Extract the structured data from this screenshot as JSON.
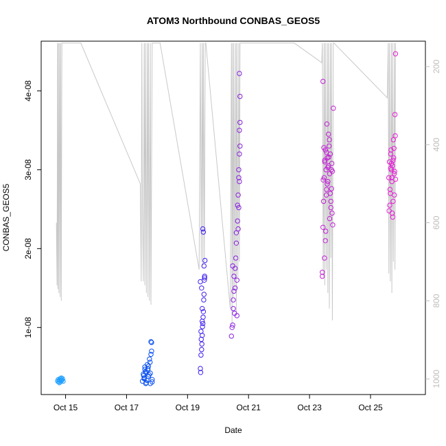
{
  "chart_data": {
    "type": "scatter",
    "title": "ATOM3 Northbound CONBAS_GEOS5",
    "xlabel": "Date",
    "ylabel": "CONBAS_GEOS5",
    "x_ticks": [
      "Oct 15",
      "Oct 17",
      "Oct 19",
      "Oct 21",
      "Oct 23",
      "Oct 25"
    ],
    "x_tick_days": [
      15,
      17,
      19,
      21,
      23,
      25
    ],
    "xlim": [
      14.2,
      26.8
    ],
    "ylim": [
      1.5e-09,
      4.63e-08
    ],
    "y_ticks": [
      "1e-08",
      "2e-08",
      "3e-08",
      "4e-08"
    ],
    "y_tick_values": [
      1e-08,
      2e-08,
      3e-08,
      4e-08
    ],
    "y2_ticks": [
      "200",
      "400",
      "600",
      "800",
      "1000"
    ],
    "y2_tick_values": [
      200,
      400,
      600,
      800,
      1000
    ],
    "y2lim": [
      1040,
      135
    ],
    "grid": false,
    "pressure_line_color": "#c8c8c8",
    "series": [
      {
        "color": "#1e9fff",
        "x": [
          14.74,
          14.76,
          14.78,
          14.8,
          14.82,
          14.84,
          14.86,
          14.88,
          14.9,
          14.92,
          14.8,
          14.86
        ],
        "y": [
          3.2e-09,
          3.4e-09,
          3.1e-09,
          3.3e-09,
          3.5e-09,
          3.2e-09,
          3.4e-09,
          3.3e-09,
          3.5e-09,
          3.2e-09,
          3e-09,
          3.6e-09
        ]
      },
      {
        "color": "#0a50f0",
        "x": [
          17.52,
          17.55,
          17.58,
          17.6,
          17.62,
          17.65,
          17.68,
          17.7,
          17.72,
          17.75,
          17.78,
          17.8,
          17.82,
          17.84,
          17.56,
          17.63,
          17.7,
          17.77,
          17.82,
          17.6,
          17.66,
          17.74,
          17.8,
          17.84,
          17.58,
          17.64,
          17.72,
          17.78
        ],
        "y": [
          3.2e-09,
          4.1e-09,
          3.6e-09,
          5e-09,
          4.4e-09,
          3e-09,
          5.3e-09,
          4.8e-09,
          3.8e-09,
          6e-09,
          4.2e-09,
          8.2e-09,
          7e-09,
          3.4e-09,
          3.9e-09,
          2.9e-09,
          4.6e-09,
          5.6e-09,
          8.1e-09,
          4.7e-09,
          3.3e-09,
          4e-09,
          6.6e-09,
          3.1e-09,
          3.5e-09,
          4.3e-09,
          5.1e-09,
          2.9e-09
        ]
      },
      {
        "color": "#3c1ef0",
        "x": [
          19.42,
          19.44,
          19.46,
          19.48,
          19.5,
          19.52,
          19.54,
          19.56,
          19.43,
          19.47,
          19.51,
          19.55,
          19.45,
          19.49,
          19.53,
          19.57,
          19.44,
          19.48,
          19.52,
          19.46,
          19.5,
          19.54,
          19.42,
          19.56,
          19.48
        ],
        "y": [
          4.8e-09,
          6.5e-09,
          7.2e-09,
          9e-09,
          1.05e-08,
          1.2e-08,
          1.42e-08,
          1.65e-08,
          4.3e-09,
          7.9e-09,
          1.13e-08,
          1.6e-08,
          8.5e-09,
          1.01e-08,
          1.35e-08,
          1.85e-08,
          9.5e-09,
          1.24e-08,
          2.21e-08,
          1.5e-08,
          2.25e-08,
          1.78e-08,
          1.58e-08,
          1.63e-08,
          1.08e-08
        ]
      },
      {
        "color": "#8a20e0",
        "x": [
          20.44,
          20.48,
          20.5,
          20.52,
          20.56,
          20.6,
          20.64,
          20.68,
          20.7,
          20.72,
          20.46,
          20.54,
          20.62,
          20.66,
          20.7,
          20.5,
          20.58,
          20.68,
          20.72,
          20.52,
          20.6,
          20.66,
          20.7,
          20.48,
          20.56,
          20.64,
          20.7,
          20.72,
          20.62,
          20.68
        ],
        "y": [
          8.9e-09,
          1.03e-08,
          1.24e-08,
          1.46e-08,
          1.75e-08,
          2.07e-08,
          2.55e-08,
          3e-08,
          3.5e-08,
          3.93e-08,
          1e-08,
          1.18e-08,
          1.6e-08,
          2.25e-08,
          2.85e-08,
          1.35e-08,
          1.88e-08,
          2.52e-08,
          3.6e-08,
          1.65e-08,
          2.2e-08,
          2.68e-08,
          3.2e-08,
          1.78e-08,
          1.5e-08,
          2.35e-08,
          4.22e-08,
          3.3e-08,
          1.15e-08,
          2.9e-08
        ]
      },
      {
        "color": "#c41cd8",
        "x": [
          23.42,
          23.44,
          23.46,
          23.48,
          23.5,
          23.52,
          23.54,
          23.56,
          23.58,
          23.6,
          23.62,
          23.64,
          23.66,
          23.68,
          23.7,
          23.72,
          23.74,
          23.76,
          23.78,
          23.45,
          23.5,
          23.55,
          23.6,
          23.65,
          23.7,
          23.75,
          23.47,
          23.53,
          23.58,
          23.63,
          23.68,
          23.73,
          23.49,
          23.57,
          23.66,
          23.44,
          23.52,
          23.62,
          23.72,
          23.42,
          23.56
        ],
        "y": [
          1.65e-08,
          2.27e-08,
          2.6e-08,
          2.9e-08,
          3.1e-08,
          3.25e-08,
          3e-08,
          2.75e-08,
          3.15e-08,
          2.85e-08,
          3.05e-08,
          3.3e-08,
          2.95e-08,
          3.2e-08,
          2.6e-08,
          3e-08,
          2.45e-08,
          2.3e-08,
          3.78e-08,
          2.87e-08,
          3.12e-08,
          2.68e-08,
          3.03e-08,
          3.38e-08,
          2.52e-08,
          2.98e-08,
          3.28e-08,
          2.22e-08,
          2.82e-08,
          3.16e-08,
          2.7e-08,
          3.08e-08,
          1.88e-08,
          3.58e-08,
          2.38e-08,
          4.12e-08,
          2.1e-08,
          3.45e-08,
          2.76e-08,
          1.7e-08,
          3.22e-08
        ]
      },
      {
        "color": "#e81ad8",
        "x": [
          25.6,
          25.62,
          25.64,
          25.66,
          25.68,
          25.7,
          25.72,
          25.74,
          25.76,
          25.78,
          25.8,
          25.82,
          25.63,
          25.67,
          25.71,
          25.75,
          25.79,
          25.65,
          25.69,
          25.73,
          25.77,
          25.81,
          25.61,
          25.7,
          25.78,
          25.66,
          25.74,
          25.82
        ],
        "y": [
          2.9e-08,
          3.1e-08,
          2.75e-08,
          3.2e-08,
          3e-08,
          2.85e-08,
          3.05e-08,
          2.6e-08,
          3.15e-08,
          2.95e-08,
          3.7e-08,
          4.47e-08,
          2.55e-08,
          3.25e-08,
          2.45e-08,
          3.38e-08,
          2.98e-08,
          2.7e-08,
          3.08e-08,
          2.4e-08,
          3.27e-08,
          3.43e-08,
          2.48e-08,
          2.9e-08,
          2.68e-08,
          3.02e-08,
          3.12e-08,
          2.88e-08
        ]
      }
    ],
    "pressure_line": {
      "x": [
        14.7,
        14.72,
        14.74,
        14.75,
        14.76,
        14.78,
        14.8,
        14.82,
        14.84,
        14.86,
        14.88,
        14.9,
        15.5,
        17.45,
        17.48,
        17.5,
        17.52,
        17.55,
        17.58,
        17.6,
        17.62,
        17.65,
        17.68,
        17.7,
        17.72,
        17.75,
        17.78,
        17.8,
        17.84,
        18.1,
        19.38,
        19.42,
        19.45,
        19.48,
        19.5,
        19.52,
        19.55,
        19.58,
        19.6,
        20.4,
        20.44,
        20.46,
        20.48,
        20.5,
        20.52,
        20.55,
        20.58,
        20.6,
        20.62,
        20.65,
        20.68,
        20.7,
        20.72,
        22.5,
        23.4,
        23.42,
        23.45,
        23.48,
        23.5,
        23.52,
        23.55,
        23.58,
        23.6,
        23.62,
        23.65,
        23.68,
        23.7,
        23.72,
        23.75,
        23.78,
        23.8,
        25.55,
        25.58,
        25.6,
        25.62,
        25.65,
        25.68,
        25.7,
        25.72,
        25.75,
        25.78,
        25.8,
        25.82
      ],
      "p": [
        600,
        760,
        140,
        770,
        140,
        780,
        140,
        790,
        140,
        800,
        140,
        140,
        140,
        500,
        750,
        140,
        560,
        750,
        140,
        760,
        140,
        780,
        140,
        790,
        140,
        800,
        140,
        810,
        140,
        140,
        720,
        140,
        700,
        140,
        710,
        140,
        700,
        140,
        140,
        820,
        140,
        860,
        140,
        790,
        140,
        770,
        140,
        830,
        140,
        740,
        140,
        700,
        140,
        140,
        190,
        140,
        740,
        140,
        760,
        140,
        720,
        140,
        780,
        140,
        820,
        140,
        690,
        140,
        850,
        140,
        140,
        280,
        140,
        730,
        140,
        750,
        140,
        780,
        140,
        700,
        140,
        720,
        140
      ]
    }
  }
}
